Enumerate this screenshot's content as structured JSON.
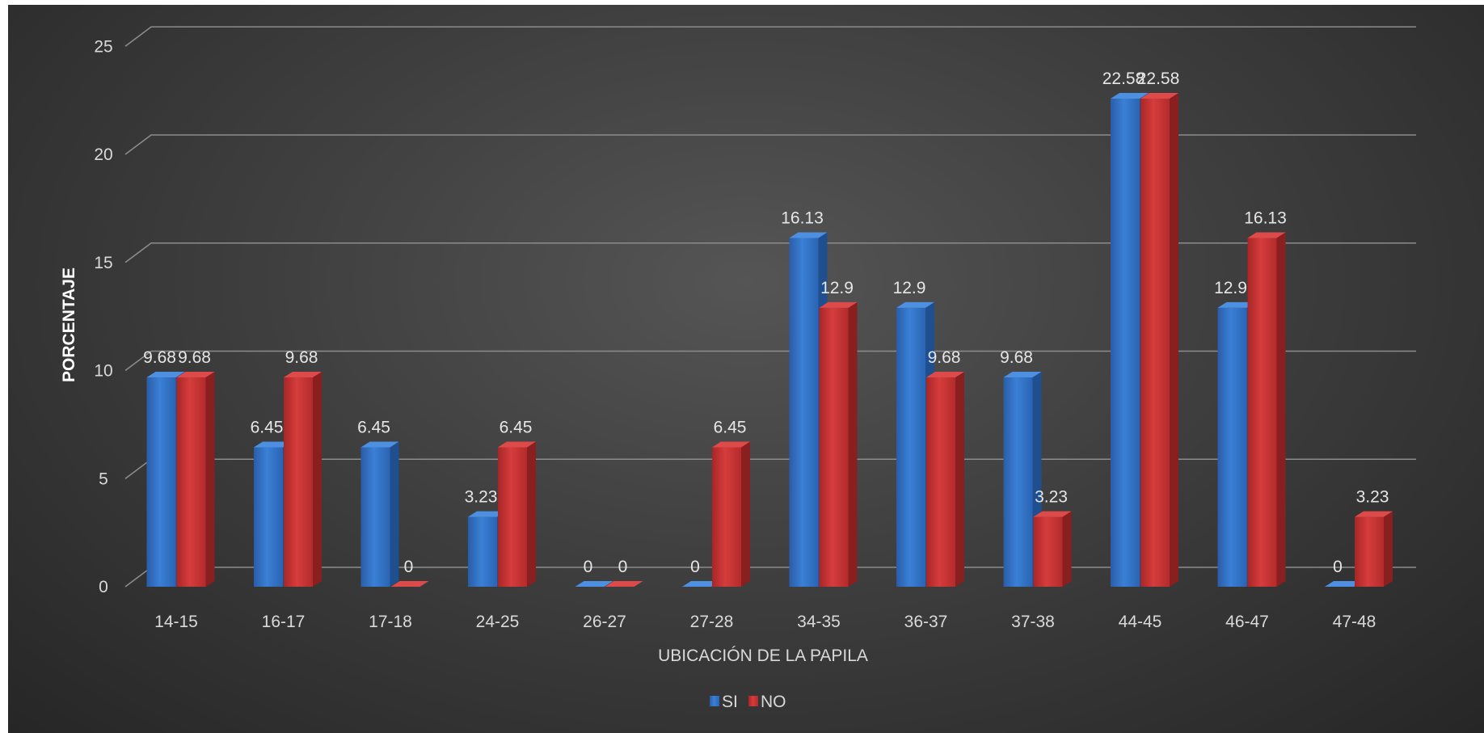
{
  "chart_data": {
    "type": "bar",
    "title": "",
    "xlabel": "UBICACIÓN DE LA PAPILA",
    "ylabel": "PORCENTAJE",
    "ylim": [
      0,
      25
    ],
    "yticks": [
      "0",
      "5",
      "10",
      "15",
      "20",
      "25"
    ],
    "categories": [
      "14-15",
      "16-17",
      "17-18",
      "24-25",
      "26-27",
      "27-28",
      "34-35",
      "36-37",
      "37-38",
      "44-45",
      "46-47",
      "47-48"
    ],
    "series": [
      {
        "name": "SI",
        "color": "#2e6fc4",
        "values": [
          9.68,
          6.45,
          6.45,
          3.23,
          0,
          0,
          16.13,
          12.9,
          9.68,
          22.58,
          12.9,
          0
        ],
        "labels": [
          "9.68",
          "6.45",
          "6.45",
          "3.23",
          "0",
          "0",
          "16.13",
          "12.9",
          "9.68",
          "22.58",
          "12.9",
          "0"
        ]
      },
      {
        "name": "NO",
        "color": "#c62f2f",
        "values": [
          9.68,
          9.68,
          0,
          6.45,
          0,
          6.45,
          12.9,
          9.68,
          3.23,
          22.58,
          16.13,
          3.23
        ],
        "labels": [
          "9.68",
          "9.68",
          "0",
          "6.45",
          "0",
          "6.45",
          "12.9",
          "9.68",
          "3.23",
          "22.58",
          "16.13",
          "3.23"
        ]
      }
    ],
    "grid": true,
    "legend_position": "bottom",
    "style": "3d-clustered-column",
    "background": "#3d3d3d"
  }
}
